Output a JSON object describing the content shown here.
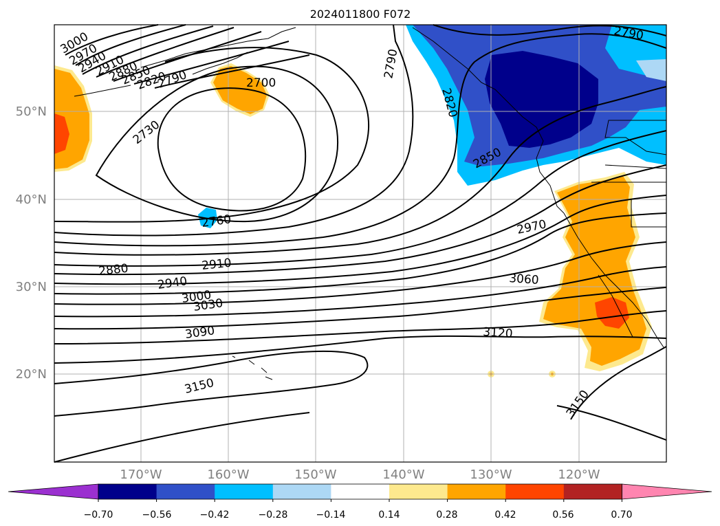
{
  "title": "2024011800 F072",
  "lat_labels": [
    "50°N",
    "40°N",
    "30°N",
    "20°N"
  ],
  "lon_labels": [
    "170°W",
    "160°W",
    "150°W",
    "140°W",
    "130°W",
    "120°W"
  ],
  "contour_labels": [
    "3000",
    "2970",
    "2940",
    "2910",
    "2880",
    "2850",
    "2820",
    "2790",
    "2790",
    "2790",
    "2820",
    "2850",
    "2700",
    "2730",
    "2760",
    "2970",
    "2880",
    "2910",
    "2940",
    "3000",
    "3030",
    "3060",
    "3090",
    "3120",
    "3150",
    "3150"
  ],
  "colorbar": {
    "ticks": [
      "−0.70",
      "−0.56",
      "−0.42",
      "−0.28",
      "−0.14",
      "0.14",
      "0.28",
      "0.42",
      "0.56",
      "0.70"
    ],
    "colors": [
      "#9b30d0",
      "#00008b",
      "#3050c8",
      "#00bfff",
      "#add8f5",
      "#ffffff",
      "#fde98e",
      "#ffa500",
      "#ff4500",
      "#b22222",
      "#ff85b0"
    ]
  },
  "colors": {
    "anom_orange": "#ffa500",
    "anom_light_orange": "#fde98e",
    "anom_red": "#ff4500",
    "anom_navy": "#00008b",
    "anom_blue": "#3050c8",
    "anom_sky": "#00bfff",
    "anom_light_blue": "#add8f5"
  }
}
